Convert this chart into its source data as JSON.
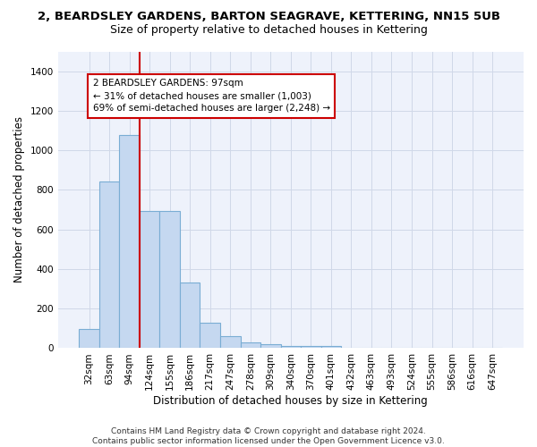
{
  "title": "2, BEARDSLEY GARDENS, BARTON SEAGRAVE, KETTERING, NN15 5UB",
  "subtitle": "Size of property relative to detached houses in Kettering",
  "xlabel": "Distribution of detached houses by size in Kettering",
  "ylabel": "Number of detached properties",
  "bar_color": "#c5d8f0",
  "bar_edge_color": "#7aadd4",
  "categories": [
    "32sqm",
    "63sqm",
    "94sqm",
    "124sqm",
    "155sqm",
    "186sqm",
    "217sqm",
    "247sqm",
    "278sqm",
    "309sqm",
    "340sqm",
    "370sqm",
    "401sqm",
    "432sqm",
    "463sqm",
    "493sqm",
    "524sqm",
    "555sqm",
    "586sqm",
    "616sqm",
    "647sqm"
  ],
  "values": [
    97,
    843,
    1079,
    693,
    693,
    332,
    128,
    60,
    30,
    20,
    13,
    10,
    12,
    0,
    0,
    0,
    0,
    0,
    0,
    0,
    0
  ],
  "ylim": [
    0,
    1500
  ],
  "yticks": [
    0,
    200,
    400,
    600,
    800,
    1000,
    1200,
    1400
  ],
  "red_line_x": 2.5,
  "annotation_text": "2 BEARDSLEY GARDENS: 97sqm\n← 31% of detached houses are smaller (1,003)\n69% of semi-detached houses are larger (2,248) →",
  "annotation_box_color": "#ffffff",
  "annotation_box_edge": "#cc0000",
  "footnote": "Contains HM Land Registry data © Crown copyright and database right 2024.\nContains public sector information licensed under the Open Government Licence v3.0.",
  "background_color": "#eef2fb",
  "grid_color": "#d0d8e8",
  "title_fontsize": 9.5,
  "subtitle_fontsize": 9,
  "axis_label_fontsize": 8.5,
  "tick_fontsize": 7.5,
  "annotation_fontsize": 7.5,
  "footnote_fontsize": 6.5
}
